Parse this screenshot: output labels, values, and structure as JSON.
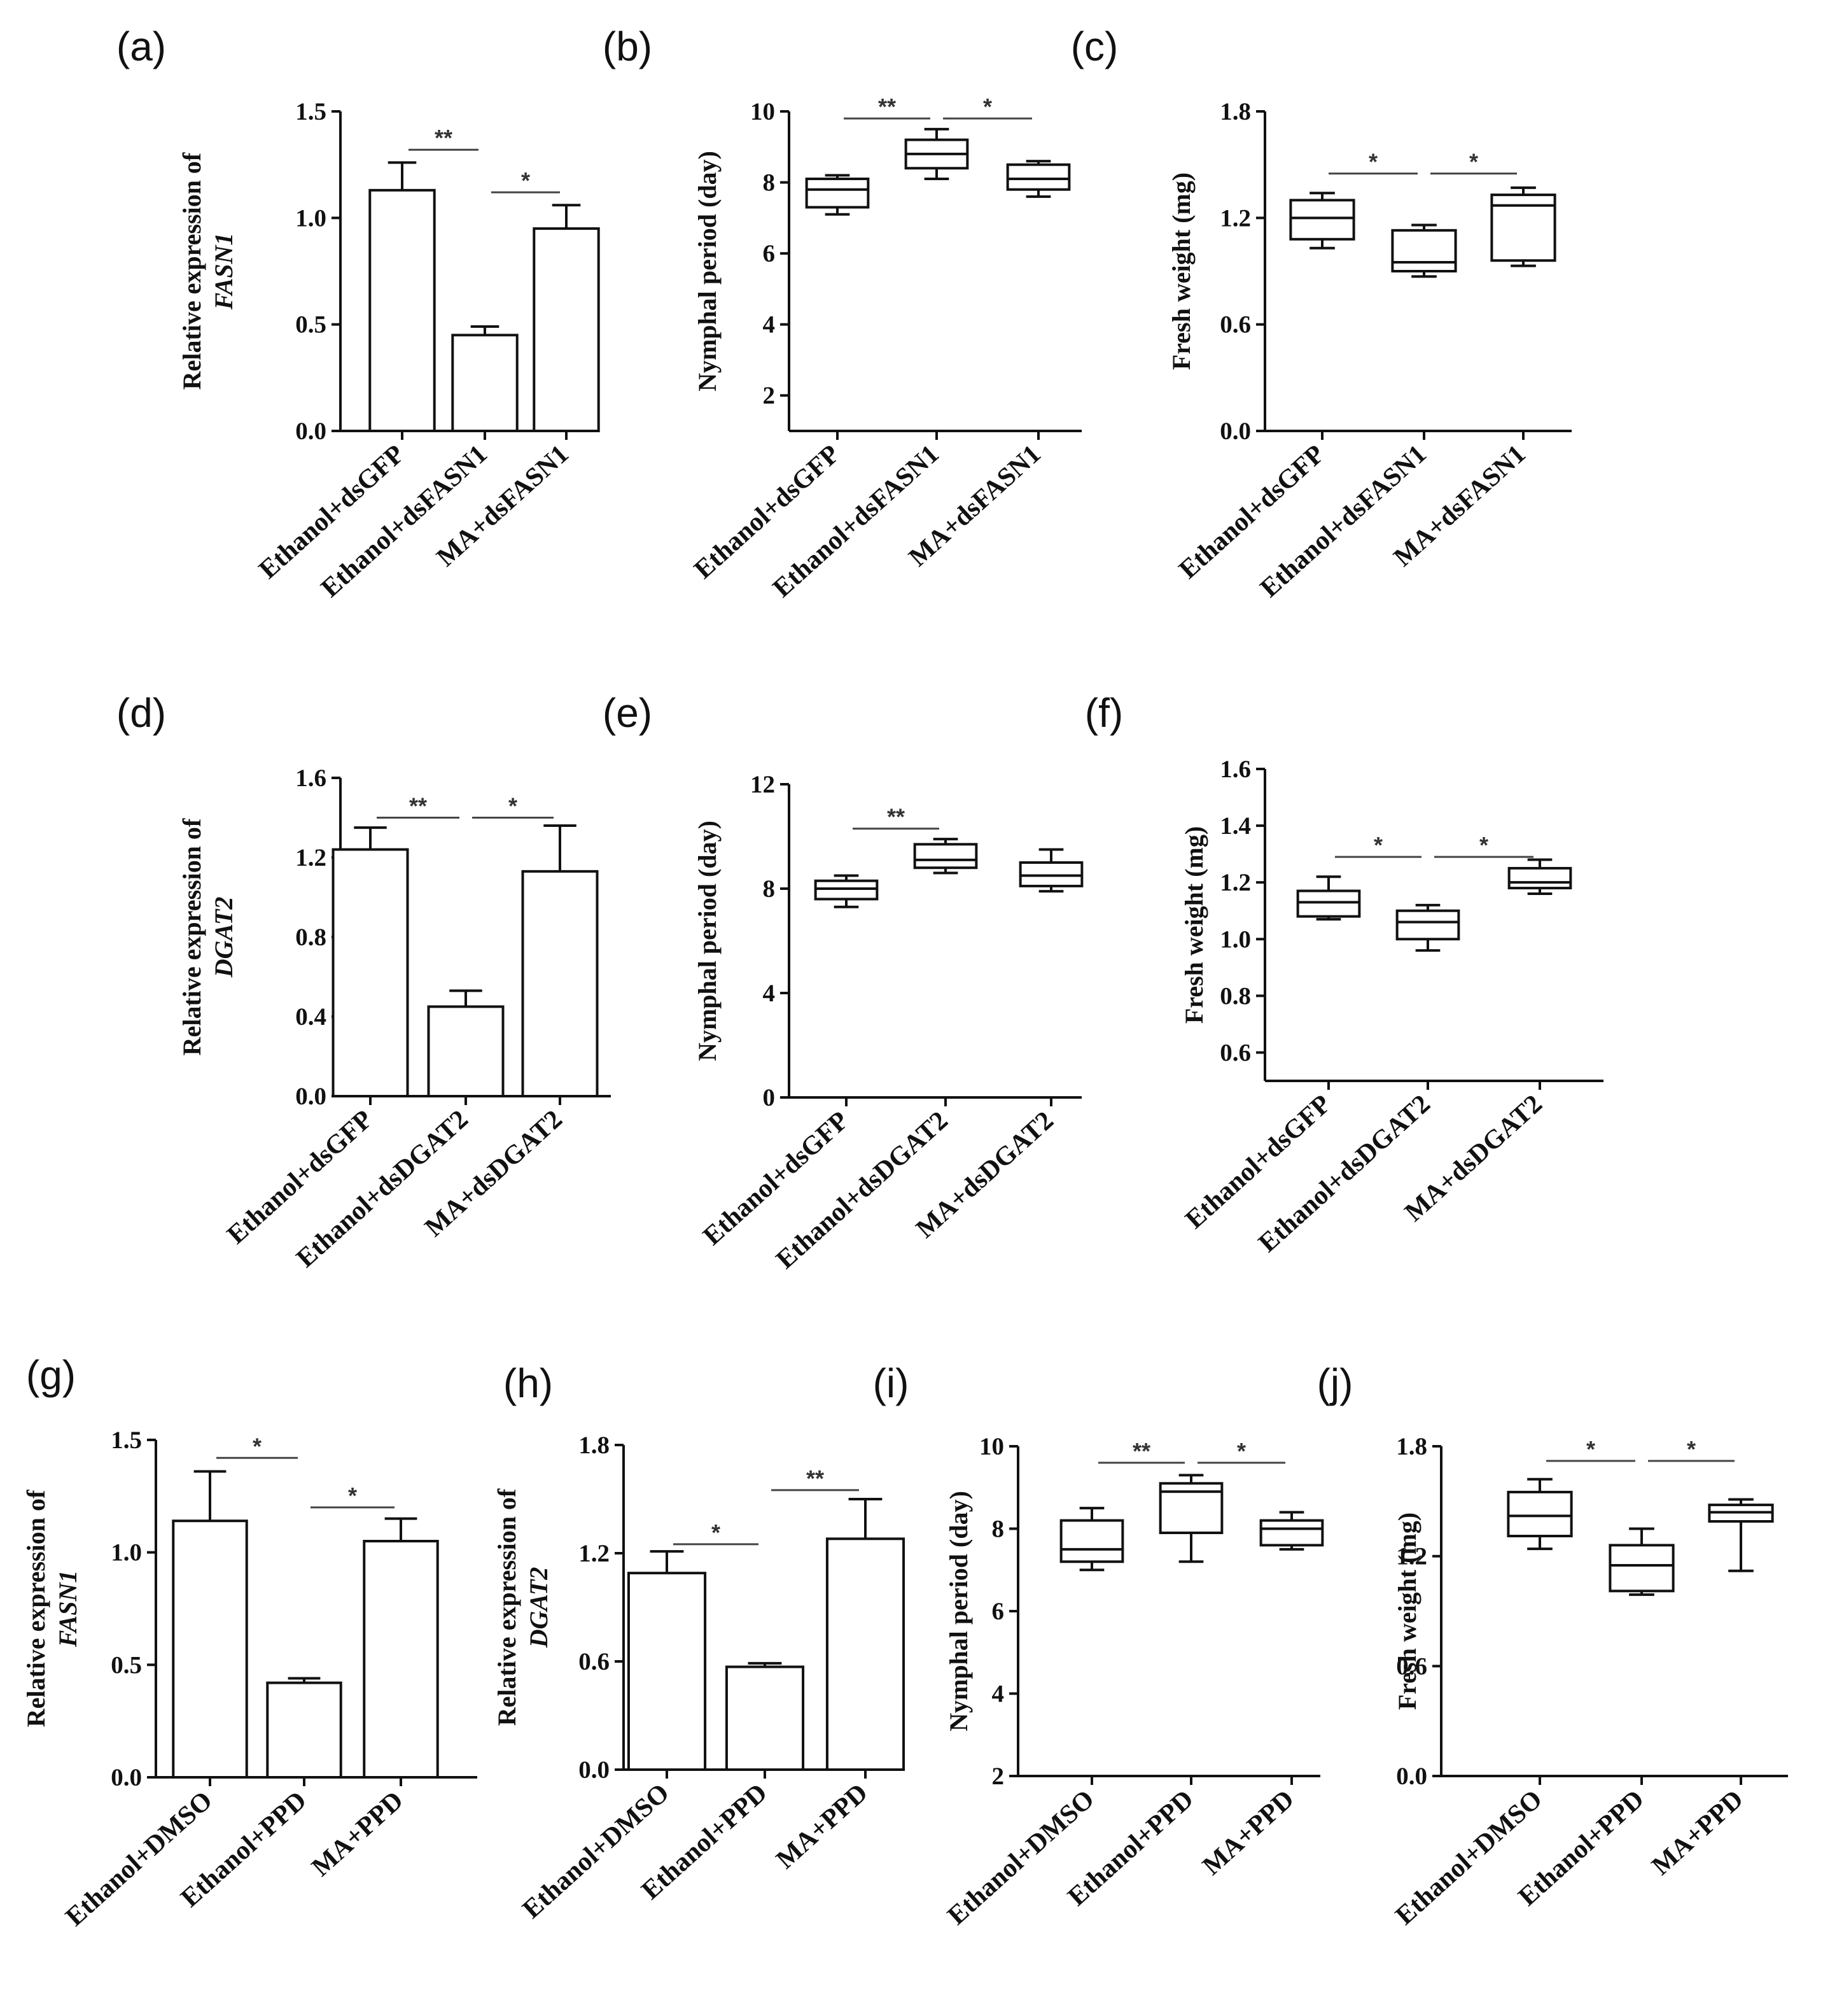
{
  "chart_data": [
    {
      "panel": "(a)",
      "type": "bar",
      "ylabel": "Relative expression of",
      "ylabel_gene": "FASN1",
      "ylim": [
        0,
        1.5
      ],
      "yticks": [
        "0.0",
        "0.5",
        "1.0",
        "1.5"
      ],
      "categories": [
        "Ethanol+dsGFP",
        "Ethanol+dsFASN1",
        "MA+dsFASN1"
      ],
      "values": [
        1.13,
        0.45,
        0.95
      ],
      "errors": [
        0.13,
        0.04,
        0.11
      ],
      "significance": [
        {
          "from": 0,
          "to": 1,
          "label": "**",
          "y": 1.32
        },
        {
          "from": 1,
          "to": 2,
          "label": "*",
          "y": 1.12
        }
      ]
    },
    {
      "panel": "(b)",
      "type": "box",
      "ylabel": "Nymphal period (day)",
      "ylim": [
        1,
        10
      ],
      "yticks": [
        "2",
        "4",
        "6",
        "8",
        "10"
      ],
      "categories": [
        "Ethanol+dsGFP",
        "Ethanol+dsFASN1",
        "MA+dsFASN1"
      ],
      "boxes": [
        {
          "min": 7.1,
          "q1": 7.3,
          "median": 7.8,
          "q3": 8.1,
          "max": 8.2
        },
        {
          "min": 8.1,
          "q1": 8.4,
          "median": 8.8,
          "q3": 9.2,
          "max": 9.5
        },
        {
          "min": 7.6,
          "q1": 7.8,
          "median": 8.1,
          "q3": 8.5,
          "max": 8.6
        }
      ],
      "significance": [
        {
          "from": 0,
          "to": 1,
          "label": "**",
          "y": 9.8
        },
        {
          "from": 1,
          "to": 2,
          "label": "*",
          "y": 9.8
        }
      ]
    },
    {
      "panel": "(c)",
      "type": "box",
      "ylabel": "Fresh weight (mg)",
      "ylim": [
        0,
        1.8
      ],
      "yticks": [
        "0.0",
        "0.6",
        "1.2",
        "1.8"
      ],
      "categories": [
        "Ethanol+dsGFP",
        "Ethanol+dsFASN1",
        "MA+dsFASN1"
      ],
      "boxes": [
        {
          "min": 1.03,
          "q1": 1.08,
          "median": 1.2,
          "q3": 1.3,
          "max": 1.34
        },
        {
          "min": 0.87,
          "q1": 0.9,
          "median": 0.95,
          "q3": 1.13,
          "max": 1.16
        },
        {
          "min": 0.93,
          "q1": 0.96,
          "median": 1.27,
          "q3": 1.33,
          "max": 1.37
        }
      ],
      "significance": [
        {
          "from": 0,
          "to": 1,
          "label": "*",
          "y": 1.45
        },
        {
          "from": 1,
          "to": 2,
          "label": "*",
          "y": 1.45
        }
      ]
    },
    {
      "panel": "(d)",
      "type": "bar",
      "ylabel": "Relative expression of",
      "ylabel_gene": "DGAT2",
      "ylim": [
        0,
        1.6
      ],
      "yticks": [
        "0.0",
        "0.4",
        "0.8",
        "1.2",
        "1.6"
      ],
      "categories": [
        "Ethanol+dsGFP",
        "Ethanol+dsDGAT2",
        "MA+dsDGAT2"
      ],
      "values": [
        1.24,
        0.45,
        1.13
      ],
      "errors": [
        0.11,
        0.08,
        0.23
      ],
      "significance": [
        {
          "from": 0,
          "to": 1,
          "label": "**",
          "y": 1.4
        },
        {
          "from": 1,
          "to": 2,
          "label": "*",
          "y": 1.4
        }
      ]
    },
    {
      "panel": "(e)",
      "type": "box",
      "ylabel": "Nymphal period (day)",
      "ylim": [
        0,
        12
      ],
      "yticks": [
        "0",
        "4",
        "8",
        "12"
      ],
      "categories": [
        "Ethanol+dsGFP",
        "Ethanol+dsDGAT2",
        "MA+dsDGAT2"
      ],
      "boxes": [
        {
          "min": 7.3,
          "q1": 7.6,
          "median": 8.0,
          "q3": 8.3,
          "max": 8.5
        },
        {
          "min": 8.6,
          "q1": 8.8,
          "median": 9.1,
          "q3": 9.7,
          "max": 9.9
        },
        {
          "min": 7.9,
          "q1": 8.1,
          "median": 8.5,
          "q3": 9.0,
          "max": 9.5
        }
      ],
      "significance": [
        {
          "from": 0,
          "to": 1,
          "label": "**",
          "y": 10.3
        }
      ]
    },
    {
      "panel": "(f)",
      "type": "box",
      "ylabel": "Fresh weight (mg)",
      "ylim": [
        0.5,
        1.6
      ],
      "yticks": [
        "0.6",
        "0.8",
        "1.0",
        "1.2",
        "1.4",
        "1.6"
      ],
      "categories": [
        "Ethanol+dsGFP",
        "Ethanol+dsDGAT2",
        "MA+dsDGAT2"
      ],
      "boxes": [
        {
          "min": 1.07,
          "q1": 1.08,
          "median": 1.13,
          "q3": 1.17,
          "max": 1.22
        },
        {
          "min": 0.96,
          "q1": 1.0,
          "median": 1.06,
          "q3": 1.1,
          "max": 1.12
        },
        {
          "min": 1.16,
          "q1": 1.18,
          "median": 1.2,
          "q3": 1.25,
          "max": 1.28
        }
      ],
      "significance": [
        {
          "from": 0,
          "to": 1,
          "label": "*",
          "y": 1.29
        },
        {
          "from": 1,
          "to": 2,
          "label": "*",
          "y": 1.29
        }
      ]
    },
    {
      "panel": "(g)",
      "type": "bar",
      "ylabel": "Relative expression of",
      "ylabel_gene": "FASN1",
      "ylim": [
        0,
        1.5
      ],
      "yticks": [
        "0.0",
        "0.5",
        "1.0",
        "1.5"
      ],
      "categories": [
        "Ethanol+DMSO",
        "Ethanol+PPD",
        "MA+PPD"
      ],
      "values": [
        1.14,
        0.42,
        1.05
      ],
      "errors": [
        0.22,
        0.02,
        0.1
      ],
      "significance": [
        {
          "from": 0,
          "to": 1,
          "label": "*",
          "y": 1.42
        },
        {
          "from": 1,
          "to": 2,
          "label": "*",
          "y": 1.2
        }
      ]
    },
    {
      "panel": "(h)",
      "type": "bar",
      "ylabel": "Relative expression of",
      "ylabel_gene": "DGAT2",
      "ylim": [
        0,
        1.8
      ],
      "yticks": [
        "0.0",
        "0.6",
        "1.2",
        "1.8"
      ],
      "categories": [
        "Ethanol+DMSO",
        "Ethanol+PPD",
        "MA+PPD"
      ],
      "values": [
        1.09,
        0.57,
        1.28
      ],
      "errors": [
        0.12,
        0.02,
        0.22
      ],
      "significance": [
        {
          "from": 0,
          "to": 1,
          "label": "*",
          "y": 1.25
        },
        {
          "from": 1,
          "to": 2,
          "label": "**",
          "y": 1.55
        }
      ]
    },
    {
      "panel": "(i)",
      "type": "box",
      "ylabel": "Nymphal period (day)",
      "ylim": [
        2,
        10
      ],
      "yticks": [
        "2",
        "4",
        "6",
        "8",
        "10"
      ],
      "categories": [
        "Ethanol+DMSO",
        "Ethanol+PPD",
        "MA+PPD"
      ],
      "boxes": [
        {
          "min": 7.0,
          "q1": 7.2,
          "median": 7.5,
          "q3": 8.2,
          "max": 8.5
        },
        {
          "min": 7.2,
          "q1": 7.9,
          "median": 8.9,
          "q3": 9.1,
          "max": 9.3
        },
        {
          "min": 7.5,
          "q1": 7.6,
          "median": 8.0,
          "q3": 8.2,
          "max": 8.4
        }
      ],
      "significance": [
        {
          "from": 0,
          "to": 1,
          "label": "**",
          "y": 9.6
        },
        {
          "from": 1,
          "to": 2,
          "label": "*",
          "y": 9.6
        }
      ]
    },
    {
      "panel": "(j)",
      "type": "box",
      "ylabel": "Fresh weight (mg)",
      "ylim": [
        0,
        1.8
      ],
      "yticks": [
        "0.0",
        "0.6",
        "1.2",
        "1.8"
      ],
      "categories": [
        "Ethanol+DMSO",
        "Ethanol+PPD",
        "MA+PPD"
      ],
      "boxes": [
        {
          "min": 1.24,
          "q1": 1.31,
          "median": 1.42,
          "q3": 1.55,
          "max": 1.62
        },
        {
          "min": 0.99,
          "q1": 1.01,
          "median": 1.15,
          "q3": 1.26,
          "max": 1.35
        },
        {
          "min": 1.12,
          "q1": 1.39,
          "median": 1.44,
          "q3": 1.48,
          "max": 1.51
        }
      ],
      "significance": [
        {
          "from": 0,
          "to": 1,
          "label": "*",
          "y": 1.72
        },
        {
          "from": 1,
          "to": 2,
          "label": "*",
          "y": 1.72
        }
      ]
    }
  ]
}
